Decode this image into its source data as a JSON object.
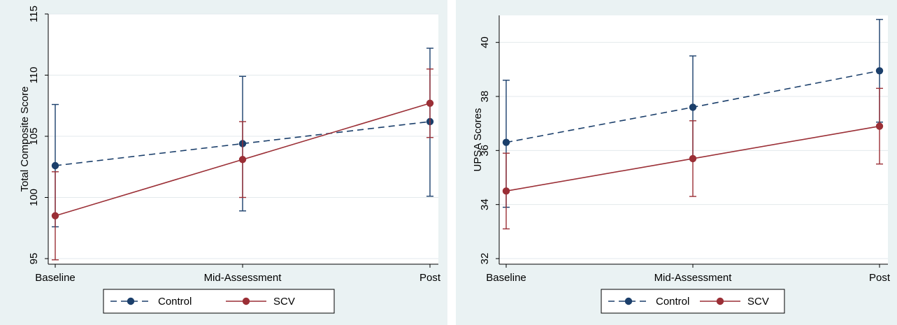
{
  "colors": {
    "panel_bg": "#eaf2f3",
    "plot_bg": "#ffffff",
    "grid": "#e3eaec",
    "control": "#1b3f6b",
    "scv": "#9b2f36"
  },
  "chart_data": [
    {
      "type": "line",
      "title": "",
      "xlabel": "",
      "ylabel": "Total Composite Score",
      "categories": [
        "Baseline",
        "Mid-Assessment",
        "Post"
      ],
      "ylim": [
        95,
        115
      ],
      "yticks": [
        "95",
        "100",
        "105",
        "110",
        "115"
      ],
      "grid": true,
      "legend_position": "bottom",
      "series": [
        {
          "name": "Control",
          "color": "#1b3f6b",
          "line_style": "dashed",
          "values": [
            102.6,
            104.4,
            106.2
          ],
          "ci_low": [
            97.6,
            98.9,
            100.1
          ],
          "ci_high": [
            107.6,
            109.9,
            112.2
          ]
        },
        {
          "name": "SCV",
          "color": "#9b2f36",
          "line_style": "solid",
          "values": [
            98.5,
            103.1,
            107.7
          ],
          "ci_low": [
            94.9,
            100.0,
            104.9
          ],
          "ci_high": [
            102.1,
            106.2,
            110.5
          ]
        }
      ]
    },
    {
      "type": "line",
      "title": "",
      "xlabel": "",
      "ylabel": "UPSA Scores",
      "categories": [
        "Baseline",
        "Mid-Assessment",
        "Post"
      ],
      "ylim": [
        32,
        41
      ],
      "yticks": [
        "32",
        "34",
        "36",
        "38",
        "40"
      ],
      "grid": true,
      "legend_position": "bottom",
      "series": [
        {
          "name": "Control",
          "color": "#1b3f6b",
          "line_style": "dashed",
          "values": [
            36.3,
            37.6,
            38.95
          ],
          "ci_low": [
            33.9,
            35.7,
            37.05
          ],
          "ci_high": [
            38.6,
            39.5,
            40.85
          ]
        },
        {
          "name": "SCV",
          "color": "#9b2f36",
          "line_style": "solid",
          "values": [
            34.5,
            35.7,
            36.9
          ],
          "ci_low": [
            33.1,
            34.3,
            35.5
          ],
          "ci_high": [
            35.9,
            37.1,
            38.3
          ]
        }
      ]
    }
  ]
}
